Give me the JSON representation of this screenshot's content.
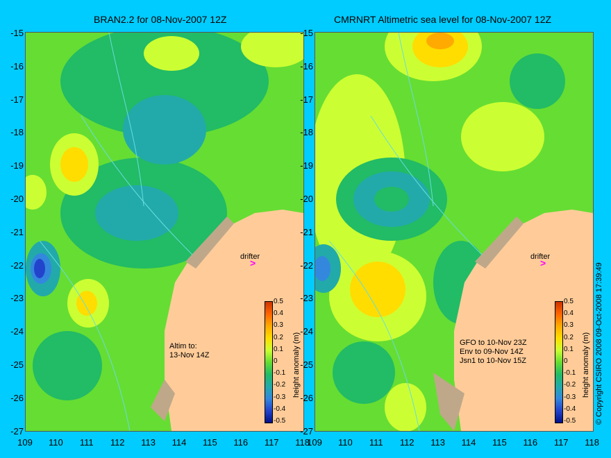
{
  "left_panel": {
    "title": "BRAN2.2 for 08-Nov-2007 12Z",
    "note": "Altim to:\n13-Nov 14Z",
    "drifter_label": "drifter"
  },
  "right_panel": {
    "title": "CMRNRT Altimetric sea level  for 08-Nov-2007 12Z",
    "note": "GFO to 10-Nov 23Z\nEnv to 09-Nov 14Z\nJsn1 to 10-Nov 15Z",
    "drifter_label": "drifter"
  },
  "y_ticks": [
    "-15",
    "-16",
    "-17",
    "-18",
    "-19",
    "-20",
    "-21",
    "-22",
    "-23",
    "-24",
    "-25",
    "-26",
    "-27"
  ],
  "x_ticks": [
    "109",
    "110",
    "111",
    "112",
    "113",
    "114",
    "115",
    "116",
    "117",
    "118"
  ],
  "colorbar": {
    "label": "height anomaly (m)",
    "ticks": [
      "0.5",
      "0.4",
      "0.3",
      "0.2",
      "0.1",
      "0",
      "-0.1",
      "-0.2",
      "-0.3",
      "-0.4",
      "-0.5"
    ],
    "colors": [
      "#cc3300",
      "#ff6600",
      "#ffaa00",
      "#ffdd00",
      "#ccff33",
      "#66dd33",
      "#22bb66",
      "#22aaaa",
      "#3388dd",
      "#2244cc",
      "#001188"
    ]
  },
  "copyright": "© Copyright CSIRO 2008    09-Oct-2008 17:39:49",
  "colors": {
    "background": "#00ccff",
    "land": "#ffcc99",
    "drifter_arrow": "#ff00ff"
  }
}
